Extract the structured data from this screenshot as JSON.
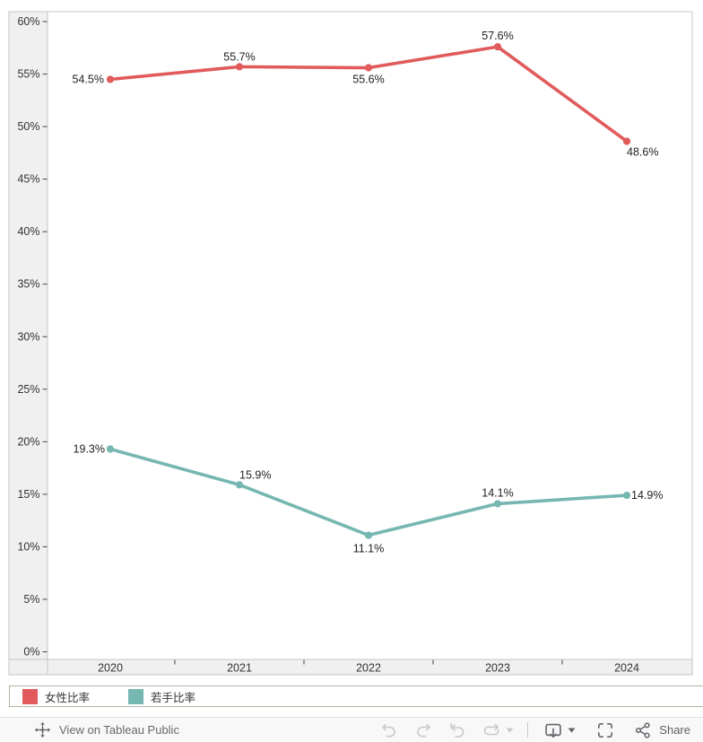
{
  "chart_data": {
    "type": "line",
    "x": [
      "2020",
      "2021",
      "2022",
      "2023",
      "2024"
    ],
    "series": [
      {
        "id": "female-ratio",
        "name": "女性比率",
        "color": "#e15b5c",
        "values": [
          54.5,
          55.7,
          55.6,
          57.6,
          48.6
        ],
        "point_labels": [
          "54.5%",
          "55.7%",
          "55.6%",
          "57.6%",
          "48.6%"
        ],
        "label_pos": [
          {
            "anchor": "end",
            "dx": -7,
            "dy": 4
          },
          {
            "anchor": "middle",
            "dx": 0,
            "dy": -7
          },
          {
            "anchor": "middle",
            "dx": 0,
            "dy": 17
          },
          {
            "anchor": "middle",
            "dx": 0,
            "dy": -8
          },
          {
            "anchor": "start",
            "dx": 0,
            "dy": 16
          }
        ]
      },
      {
        "id": "young-ratio",
        "name": "若手比率",
        "color": "#76b7b1",
        "values": [
          19.3,
          15.9,
          11.1,
          14.1,
          14.9
        ],
        "point_labels": [
          "19.3%",
          "15.9%",
          "11.1%",
          "14.1%",
          "14.9%"
        ],
        "label_pos": [
          {
            "anchor": "end",
            "dx": -6,
            "dy": 4
          },
          {
            "anchor": "start",
            "dx": 0,
            "dy": -7
          },
          {
            "anchor": "middle",
            "dx": 0,
            "dy": 19
          },
          {
            "anchor": "middle",
            "dx": 0,
            "dy": -8
          },
          {
            "anchor": "start",
            "dx": 5,
            "dy": 4
          }
        ]
      }
    ],
    "title": "",
    "xlabel": "",
    "ylabel": "",
    "ylim": [
      0,
      60
    ],
    "ytick_step": 5,
    "ytick_labels": [
      "0%",
      "5%",
      "10%",
      "15%",
      "20%",
      "25%",
      "30%",
      "35%",
      "40%",
      "45%",
      "50%",
      "55%",
      "60%"
    ],
    "grid": false,
    "legend_position": "bottom"
  },
  "legend": {
    "items": [
      {
        "label": "女性比率",
        "color": "#e15b5c"
      },
      {
        "label": "若手比率",
        "color": "#76b7b1"
      }
    ]
  },
  "toolbar": {
    "view_on_label": "View on Tableau Public",
    "share_label": "Share",
    "icons": [
      "tableau-logo",
      "undo",
      "redo",
      "revert",
      "refresh",
      "dropdown-caret",
      "download",
      "download-caret",
      "fullscreen",
      "share"
    ]
  },
  "colors": {
    "axis_strip_bg": "#f0f0f0",
    "chart_border": "#c5c5c5",
    "axis_text": "#333333",
    "label_text": "#1e1e1e",
    "disabled_icon": "#c9c9c9",
    "active_icon": "#5f6368",
    "toolbar_bg": "#f8f8f8"
  }
}
